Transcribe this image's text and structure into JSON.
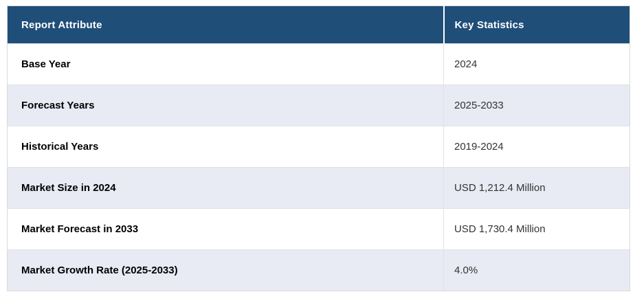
{
  "table": {
    "headers": [
      "Report Attribute",
      "Key Statistics"
    ],
    "rows": [
      {
        "attribute": "Base Year",
        "value": "2024"
      },
      {
        "attribute": "Forecast Years",
        "value": "2025-2033"
      },
      {
        "attribute": "Historical Years",
        "value": "2019-2024"
      },
      {
        "attribute": "Market Size in 2024",
        "value": "USD 1,212.4 Million"
      },
      {
        "attribute": "Market Forecast in 2033",
        "value": "USD 1,730.4 Million"
      },
      {
        "attribute": "Market Growth Rate (2025-2033)",
        "value": "4.0%"
      }
    ]
  },
  "colors": {
    "header_bg": "#1F4E79",
    "header_text": "#FFFFFF",
    "row_bg": "#FFFFFF",
    "row_alt_bg": "#E8EAF4",
    "attribute_text": "#000000",
    "value_text": "#333333",
    "border": "#D9D9D9"
  }
}
